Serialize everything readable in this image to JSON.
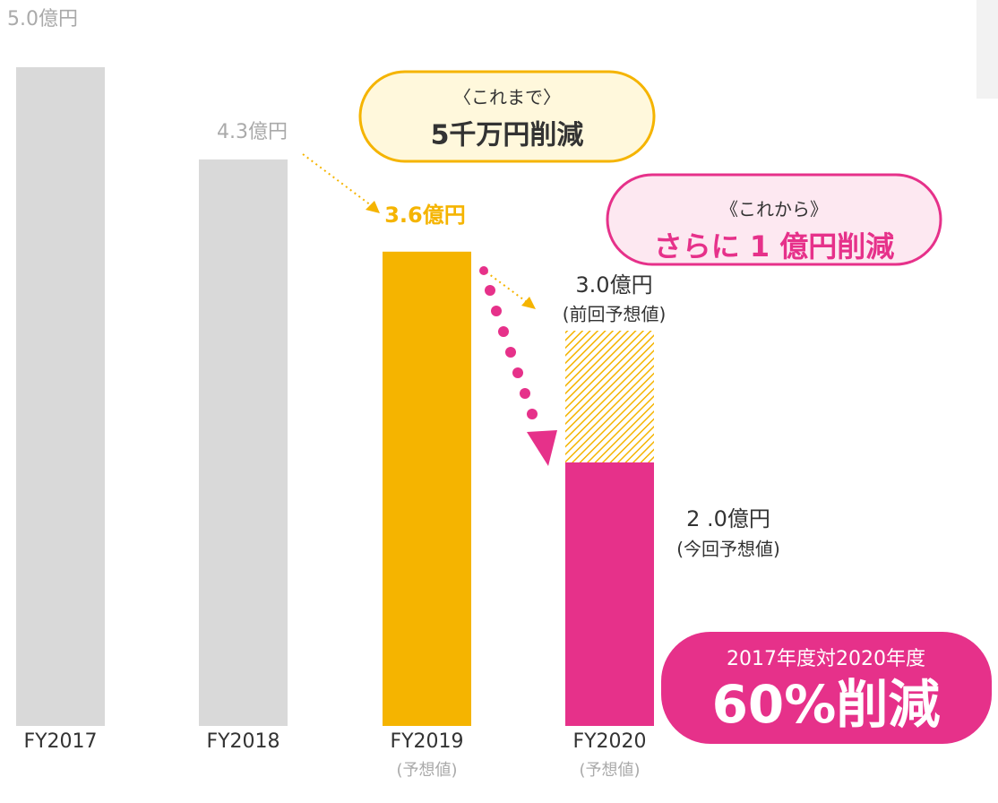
{
  "chart_data": {
    "type": "bar",
    "categories": [
      "FY2017",
      "FY2018",
      "FY2019",
      "FY2020"
    ],
    "category_notes": [
      null,
      null,
      "(予想値)",
      "(予想値)"
    ],
    "values": [
      5.0,
      4.3,
      3.6,
      2.0
    ],
    "value_labels": [
      "5.0億円",
      "4.3億円",
      "3.6億円",
      "2 .0億円"
    ],
    "value_notes": [
      null,
      null,
      null,
      "(今回予想値)"
    ],
    "colors": [
      "#d9d9d9",
      "#d9d9d9",
      "#f5b400",
      "#e6318a"
    ],
    "prev_values": [
      null,
      null,
      null,
      3.0
    ],
    "prev_value_labels": [
      null,
      null,
      null,
      "3.0億円"
    ],
    "prev_value_notes": [
      null,
      null,
      null,
      "(前回予想値)"
    ],
    "prev_color": "#f5b400",
    "annotations": [
      {
        "heading": "〈これまで〉",
        "text": "5千万円削減"
      },
      {
        "heading": "《これから》",
        "text": "さらに 1 億円削減"
      },
      {
        "heading": "2017年度対2020年度",
        "text": "60%削減"
      }
    ]
  }
}
